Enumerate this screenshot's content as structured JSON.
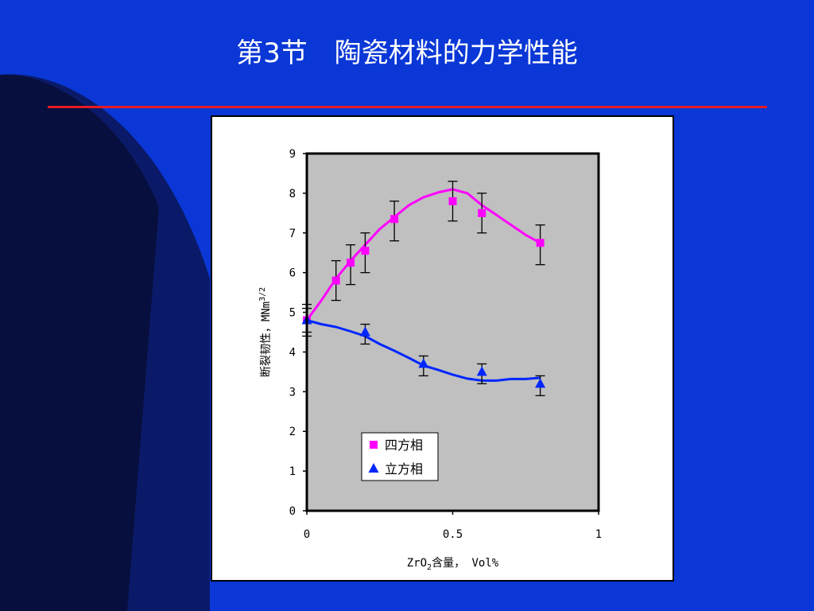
{
  "slide": {
    "title": "第3节　陶瓷材料的力学性能",
    "colors": {
      "background": "#0a37d6",
      "rule": "#e51c23",
      "decor_dark": "#05081c"
    }
  },
  "chart_data": {
    "type": "scatter",
    "title": "",
    "xlabel_main": "ZrO",
    "xlabel_sub": "2",
    "xlabel_rest": "含量，  Vol%",
    "ylabel_main": "断裂韧性，MNm",
    "ylabel_sup": "3/2",
    "xlim": [
      0,
      1
    ],
    "ylim": [
      0,
      9
    ],
    "xticks": [
      {
        "value": 0,
        "label": "0"
      },
      {
        "value": 0.5,
        "label": "0.5"
      },
      {
        "value": 1,
        "label": "1"
      }
    ],
    "yticks": [
      {
        "value": 0,
        "label": "0"
      },
      {
        "value": 1,
        "label": "1"
      },
      {
        "value": 2,
        "label": "2"
      },
      {
        "value": 3,
        "label": "3"
      },
      {
        "value": 4,
        "label": "4"
      },
      {
        "value": 5,
        "label": "5"
      },
      {
        "value": 6,
        "label": "6"
      },
      {
        "value": 7,
        "label": "7"
      },
      {
        "value": 8,
        "label": "8"
      },
      {
        "value": 9,
        "label": "9"
      }
    ],
    "grid": false,
    "plot_background": "#c0c0c0",
    "legend_position": "lower-left",
    "series": [
      {
        "name": "四方相",
        "marker": "square",
        "color": "#ff00ff",
        "points": [
          {
            "x": 0.0,
            "y": 4.8,
            "lo": 4.4,
            "hi": 5.2
          },
          {
            "x": 0.1,
            "y": 5.8,
            "lo": 5.3,
            "hi": 6.3
          },
          {
            "x": 0.15,
            "y": 6.25,
            "lo": 5.7,
            "hi": 6.7
          },
          {
            "x": 0.2,
            "y": 6.55,
            "lo": 6.0,
            "hi": 7.0
          },
          {
            "x": 0.3,
            "y": 7.35,
            "lo": 6.8,
            "hi": 7.8
          },
          {
            "x": 0.5,
            "y": 7.8,
            "lo": 7.3,
            "hi": 8.3
          },
          {
            "x": 0.6,
            "y": 7.5,
            "lo": 7.0,
            "hi": 8.0
          },
          {
            "x": 0.8,
            "y": 6.75,
            "lo": 6.2,
            "hi": 7.2
          }
        ],
        "curve": [
          [
            0.0,
            4.8
          ],
          [
            0.05,
            5.3
          ],
          [
            0.1,
            5.85
          ],
          [
            0.15,
            6.3
          ],
          [
            0.2,
            6.7
          ],
          [
            0.25,
            7.1
          ],
          [
            0.3,
            7.4
          ],
          [
            0.35,
            7.7
          ],
          [
            0.4,
            7.9
          ],
          [
            0.45,
            8.02
          ],
          [
            0.5,
            8.1
          ],
          [
            0.55,
            8.0
          ],
          [
            0.6,
            7.7
          ],
          [
            0.65,
            7.45
          ],
          [
            0.7,
            7.2
          ],
          [
            0.75,
            6.95
          ],
          [
            0.8,
            6.75
          ]
        ]
      },
      {
        "name": "立方相",
        "marker": "triangle",
        "color": "#0026ff",
        "points": [
          {
            "x": 0.0,
            "y": 4.8,
            "lo": 4.5,
            "hi": 5.1
          },
          {
            "x": 0.2,
            "y": 4.5,
            "lo": 4.2,
            "hi": 4.7
          },
          {
            "x": 0.4,
            "y": 3.7,
            "lo": 3.4,
            "hi": 3.9
          },
          {
            "x": 0.6,
            "y": 3.5,
            "lo": 3.2,
            "hi": 3.7
          },
          {
            "x": 0.8,
            "y": 3.2,
            "lo": 2.9,
            "hi": 3.4
          }
        ],
        "curve": [
          [
            0.0,
            4.8
          ],
          [
            0.05,
            4.7
          ],
          [
            0.1,
            4.63
          ],
          [
            0.15,
            4.52
          ],
          [
            0.2,
            4.4
          ],
          [
            0.25,
            4.2
          ],
          [
            0.3,
            4.03
          ],
          [
            0.35,
            3.85
          ],
          [
            0.4,
            3.66
          ],
          [
            0.45,
            3.55
          ],
          [
            0.5,
            3.43
          ],
          [
            0.55,
            3.33
          ],
          [
            0.6,
            3.28
          ],
          [
            0.65,
            3.28
          ],
          [
            0.7,
            3.32
          ],
          [
            0.75,
            3.32
          ],
          [
            0.8,
            3.35
          ]
        ]
      }
    ]
  }
}
